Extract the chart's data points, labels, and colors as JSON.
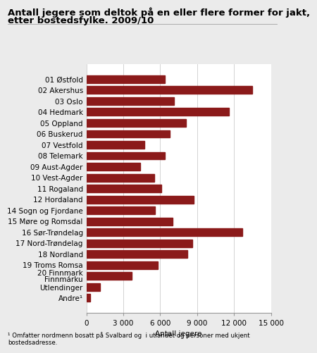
{
  "categories": [
    "01 Østfold",
    "02 Akershus",
    "03 Oslo",
    "04 Hedmark",
    "05 Oppland",
    "06 Buskerud",
    "07 Vestfold",
    "08 Telemark",
    "09 Aust-Agder",
    "10 Vest-Agder",
    "11 Rogaland",
    "12 Hordaland",
    "14 Sogn og Fjordane",
    "15 Møre og Romsdal",
    "16 Sør-Trøndelag",
    "17 Nord-Trøndelag",
    "18 Nordland",
    "19 Troms Romsa",
    "20 Finnmark\nFinnmárku",
    "Utlendinger",
    "Andre¹"
  ],
  "values": [
    6400,
    13500,
    7100,
    11600,
    8100,
    6800,
    4700,
    6400,
    4400,
    5500,
    6100,
    8700,
    5600,
    7000,
    12700,
    8600,
    8200,
    5800,
    3700,
    1100,
    320
  ],
  "bar_color": "#8B1A1A",
  "title_line1": "Antall jegere som deltok på en eller flere former for jakt,",
  "title_line2": "etter bostedsfylke. 2009/10",
  "xlabel": "Antall jegere",
  "xlim": [
    0,
    15000
  ],
  "xticks": [
    0,
    3000,
    6000,
    9000,
    12000,
    15000
  ],
  "xtick_labels": [
    "0",
    "3 000",
    "6 000",
    "9 000",
    "12 000",
    "15 000"
  ],
  "footnote": "¹ Omfatter nordmenn bosatt på Svalbard og  i utlandet og personer med ukjent\nbostedsadresse.",
  "background_color": "#ebebeb",
  "plot_bg_color": "#ffffff",
  "title_fontsize": 9.5,
  "label_fontsize": 7.5,
  "tick_fontsize": 7.5
}
